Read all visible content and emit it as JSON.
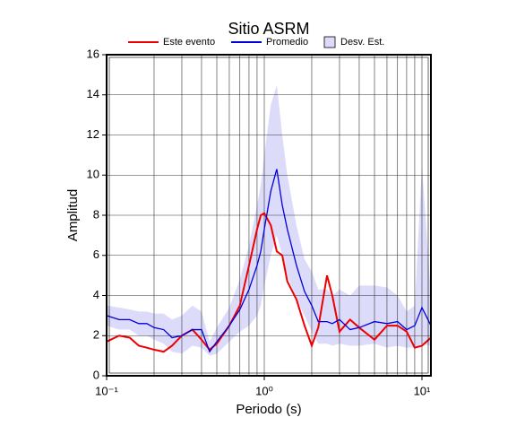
{
  "chart_data": {
    "type": "line",
    "title": "Sitio ASRM",
    "xlabel": "Periodo (s)",
    "ylabel": "Amplitud",
    "xscale": "log",
    "grid": true,
    "x": [
      0.1,
      0.12,
      0.14,
      0.16,
      0.18,
      0.2,
      0.23,
      0.26,
      0.3,
      0.35,
      0.4,
      0.45,
      0.5,
      0.6,
      0.7,
      0.8,
      0.9,
      0.95,
      1.0,
      1.1,
      1.2,
      1.3,
      1.4,
      1.6,
      1.8,
      2.0,
      2.2,
      2.5,
      2.7,
      3.0,
      3.5,
      4,
      5,
      6,
      7,
      8,
      9,
      10,
      11.4
    ],
    "series": [
      {
        "name": "Este evento",
        "color": "#ee0000",
        "width": 2,
        "values": [
          1.7,
          2.0,
          1.9,
          1.5,
          1.4,
          1.3,
          1.2,
          1.5,
          2.0,
          2.3,
          1.8,
          1.3,
          1.6,
          2.5,
          3.5,
          5.5,
          7.3,
          8.0,
          8.1,
          7.5,
          6.2,
          6.0,
          4.7,
          3.8,
          2.5,
          1.5,
          2.4,
          5.0,
          4.0,
          2.2,
          2.8,
          2.4,
          1.8,
          2.5,
          2.5,
          2.2,
          1.4,
          1.5,
          1.9
        ]
      },
      {
        "name": "Promedio",
        "color": "#0000dd",
        "width": 1.3,
        "values": [
          3.0,
          2.8,
          2.8,
          2.6,
          2.6,
          2.4,
          2.3,
          1.9,
          2.0,
          2.3,
          2.3,
          1.2,
          1.7,
          2.5,
          3.3,
          4.3,
          5.5,
          6.2,
          7.3,
          9.2,
          10.3,
          8.5,
          7.3,
          5.5,
          4.2,
          3.5,
          2.7,
          2.7,
          2.6,
          2.8,
          2.3,
          2.4,
          2.7,
          2.6,
          2.7,
          2.3,
          2.5,
          3.4,
          2.5
        ]
      }
    ],
    "band": {
      "name": "Desv. Est.",
      "color": "#dcdcfa",
      "upper": [
        3.5,
        3.4,
        3.3,
        3.2,
        3.2,
        3.1,
        3.1,
        2.8,
        3.0,
        3.5,
        3.2,
        1.7,
        2.4,
        3.4,
        4.8,
        6.5,
        8.5,
        9.5,
        11.0,
        13.5,
        14.5,
        12.0,
        10.0,
        7.5,
        5.8,
        5.2,
        4.3,
        4.3,
        4.0,
        4.3,
        4.0,
        4.5,
        4.5,
        4.4,
        4.0,
        3.2,
        3.5,
        10.5,
        4.0
      ],
      "lower": [
        2.5,
        2.3,
        2.3,
        2.0,
        2.0,
        1.8,
        1.6,
        1.2,
        1.1,
        1.5,
        1.4,
        1.0,
        1.1,
        1.7,
        2.2,
        2.5,
        3.0,
        3.5,
        4.5,
        6.0,
        7.0,
        6.0,
        5.0,
        3.8,
        3.0,
        2.2,
        1.6,
        1.6,
        1.5,
        1.6,
        1.5,
        1.5,
        1.6,
        1.4,
        1.5,
        1.4,
        1.4,
        1.6,
        1.5
      ]
    },
    "xlim": [
      0.1,
      11.4
    ],
    "xticks": [
      {
        "value": 0.1,
        "label": "10⁻¹"
      },
      {
        "value": 1,
        "label": "10⁰"
      },
      {
        "value": 10,
        "label": "10¹"
      }
    ],
    "ylim": [
      0,
      16
    ],
    "yticks": [
      0,
      2,
      4,
      6,
      8,
      10,
      12,
      14,
      16
    ]
  }
}
